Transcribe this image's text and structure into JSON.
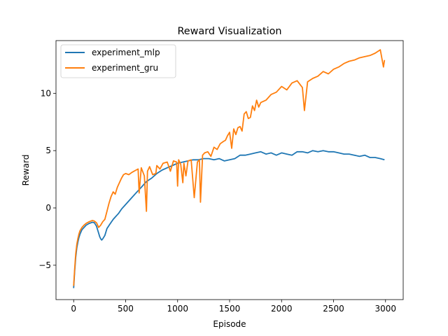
{
  "chart_data": {
    "type": "line",
    "title": "Reward Visualization",
    "xlabel": "Episode",
    "ylabel": "Reward",
    "xlim": [
      -170,
      3170
    ],
    "ylim": [
      -8.0,
      14.6
    ],
    "xticks": [
      0,
      500,
      1000,
      1500,
      2000,
      2500,
      3000
    ],
    "yticks": [
      -5,
      0,
      5,
      10
    ],
    "ytick_labels": [
      "−5",
      "0",
      "5",
      "10"
    ],
    "grid": false,
    "legend": "top-left",
    "series": [
      {
        "name": "experiment_mlp",
        "color": "#1f77b4",
        "x": [
          0,
          10,
          20,
          30,
          40,
          50,
          60,
          80,
          100,
          120,
          150,
          180,
          200,
          220,
          230,
          240,
          250,
          260,
          270,
          280,
          300,
          320,
          350,
          380,
          400,
          430,
          460,
          500,
          550,
          600,
          650,
          700,
          750,
          800,
          850,
          900,
          950,
          1000,
          1050,
          1100,
          1150,
          1200,
          1250,
          1300,
          1350,
          1400,
          1450,
          1500,
          1550,
          1600,
          1650,
          1700,
          1750,
          1800,
          1850,
          1900,
          1950,
          2000,
          2050,
          2100,
          2150,
          2200,
          2250,
          2300,
          2350,
          2400,
          2450,
          2500,
          2550,
          2600,
          2650,
          2700,
          2750,
          2800,
          2850,
          2900,
          2950,
          2990
        ],
        "values": [
          -7.0,
          -5.5,
          -4.3,
          -3.5,
          -3.0,
          -2.6,
          -2.3,
          -1.9,
          -1.7,
          -1.5,
          -1.35,
          -1.25,
          -1.3,
          -1.6,
          -1.9,
          -2.2,
          -2.5,
          -2.7,
          -2.8,
          -2.7,
          -2.4,
          -1.8,
          -1.4,
          -1.0,
          -0.8,
          -0.5,
          -0.1,
          0.3,
          0.8,
          1.3,
          1.8,
          2.3,
          2.6,
          3.0,
          3.3,
          3.5,
          3.7,
          3.9,
          4.0,
          4.1,
          4.2,
          4.2,
          4.3,
          4.3,
          4.2,
          4.3,
          4.1,
          4.2,
          4.3,
          4.6,
          4.6,
          4.7,
          4.8,
          4.9,
          4.7,
          4.8,
          4.6,
          4.8,
          4.7,
          4.6,
          4.9,
          4.9,
          4.8,
          5.0,
          4.9,
          5.0,
          4.9,
          4.9,
          4.8,
          4.7,
          4.7,
          4.6,
          4.5,
          4.6,
          4.4,
          4.4,
          4.3,
          4.2
        ]
      },
      {
        "name": "experiment_gru",
        "color": "#ff7f0e",
        "x": [
          0,
          10,
          20,
          30,
          40,
          50,
          60,
          80,
          100,
          120,
          150,
          180,
          200,
          220,
          240,
          260,
          280,
          300,
          320,
          340,
          360,
          380,
          400,
          420,
          440,
          460,
          480,
          500,
          530,
          560,
          600,
          620,
          630,
          650,
          680,
          700,
          710,
          730,
          760,
          790,
          800,
          830,
          860,
          900,
          930,
          960,
          990,
          1000,
          1010,
          1030,
          1050,
          1060,
          1080,
          1100,
          1130,
          1160,
          1190,
          1210,
          1220,
          1240,
          1260,
          1290,
          1320,
          1350,
          1380,
          1410,
          1440,
          1460,
          1480,
          1500,
          1520,
          1540,
          1560,
          1580,
          1600,
          1620,
          1640,
          1660,
          1680,
          1700,
          1720,
          1740,
          1760,
          1780,
          1800,
          1850,
          1900,
          1950,
          2000,
          2050,
          2100,
          2150,
          2200,
          2220,
          2250,
          2300,
          2350,
          2400,
          2450,
          2500,
          2550,
          2600,
          2650,
          2700,
          2750,
          2800,
          2850,
          2900,
          2950,
          2980,
          2990
        ],
        "values": [
          -6.8,
          -5.3,
          -4.0,
          -3.2,
          -2.7,
          -2.3,
          -2.0,
          -1.7,
          -1.5,
          -1.35,
          -1.2,
          -1.1,
          -1.15,
          -1.3,
          -1.7,
          -1.5,
          -1.2,
          -1.0,
          -0.3,
          0.4,
          1.0,
          1.4,
          1.2,
          1.8,
          2.2,
          2.6,
          2.9,
          3.0,
          2.9,
          3.1,
          3.3,
          3.4,
          1.3,
          3.5,
          2.8,
          -0.3,
          3.2,
          3.6,
          2.9,
          3.0,
          3.7,
          3.4,
          3.9,
          4.0,
          3.2,
          4.1,
          4.0,
          1.9,
          4.2,
          3.8,
          2.2,
          3.9,
          2.8,
          4.1,
          4.2,
          0.9,
          4.0,
          4.2,
          0.5,
          4.6,
          4.8,
          4.9,
          4.5,
          5.3,
          5.1,
          5.6,
          5.8,
          5.9,
          6.3,
          6.6,
          5.2,
          6.9,
          6.4,
          7.0,
          7.1,
          6.7,
          8.2,
          8.4,
          7.8,
          7.9,
          8.9,
          8.5,
          9.4,
          8.8,
          9.2,
          9.4,
          9.9,
          10.1,
          10.6,
          10.3,
          10.9,
          11.1,
          10.5,
          8.5,
          11.0,
          11.3,
          11.5,
          11.9,
          11.7,
          12.1,
          12.3,
          12.6,
          12.8,
          12.9,
          13.1,
          13.2,
          13.3,
          13.5,
          13.8,
          12.3,
          12.9
        ]
      }
    ]
  }
}
